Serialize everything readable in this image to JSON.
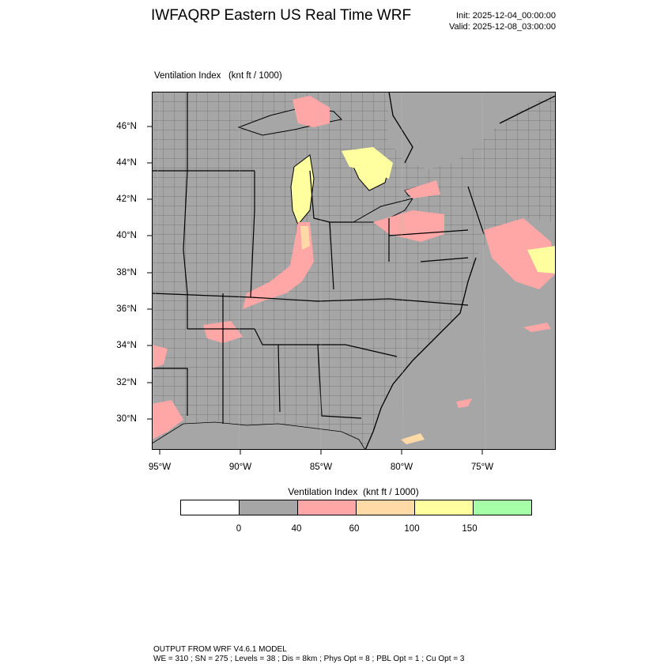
{
  "header": {
    "title": "IWFAQRP Eastern US Real Time WRF",
    "init": "Init: 2025-12-04_00:00:00",
    "valid": "Valid: 2025-12-08_03:00:00"
  },
  "plot": {
    "label": "Ventilation Index   (knt ft / 1000)"
  },
  "map": {
    "lat_labels": [
      "46°N",
      "44°N",
      "42°N",
      "40°N",
      "38°N",
      "36°N",
      "34°N",
      "32°N",
      "30°N"
    ],
    "lon_labels": [
      "95°W",
      "90°W",
      "85°W",
      "80°W",
      "75°W"
    ],
    "colors": {
      "land_low": "#a6a6a6",
      "ocean": "#a6a6a6",
      "band_40_60": "#ffa6a6",
      "band_60_100": "#ffd9a6",
      "band_100_150": "#ffff9f",
      "band_150_plus": "#a6ffa6"
    }
  },
  "legend": {
    "title": "Ventilation Index  (knt ft / 1000)",
    "colors": [
      "#ffffff",
      "#a6a6a6",
      "#ffa6a6",
      "#ffd9a6",
      "#ffff9f",
      "#a6ffa6"
    ],
    "ticks": [
      "0",
      "40",
      "60",
      "100",
      "150"
    ]
  },
  "footer": {
    "line1": "OUTPUT FROM WRF V4.6.1 MODEL",
    "line2": "WE = 310 ; SN = 275 ; Levels = 38 ; Dis = 8km ; Phys Opt = 8 ; PBL Opt = 1 ; Cu Opt = 3"
  }
}
